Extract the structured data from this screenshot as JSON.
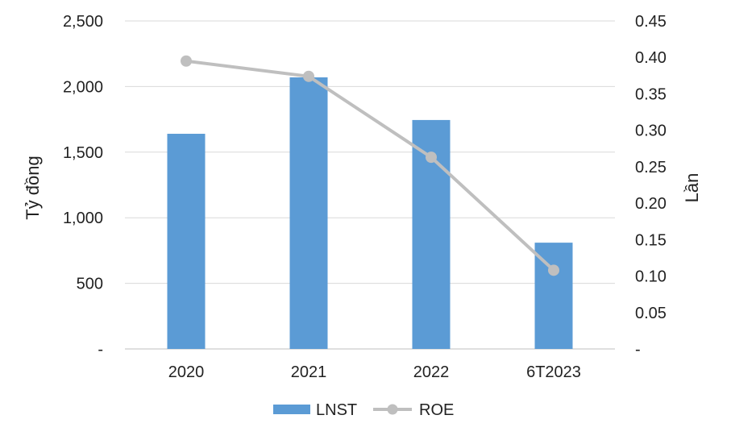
{
  "chart_data": {
    "type": "bar",
    "categories": [
      "2020",
      "2021",
      "2022",
      "6T2023"
    ],
    "series": [
      {
        "name": "LNST",
        "kind": "bar",
        "axis": "left",
        "values": [
          1640,
          2070,
          1745,
          810
        ]
      },
      {
        "name": "ROE",
        "kind": "line",
        "axis": "right",
        "values": [
          0.395,
          0.374,
          0.263,
          0.108
        ]
      }
    ],
    "ylabel": "Tỷ đồng",
    "y2label": "Lần",
    "ylim": [
      0,
      2500
    ],
    "y2lim": [
      0,
      0.45
    ],
    "y_ticks": [
      "-",
      "500",
      "1,000",
      "1,500",
      "2,000",
      "2,500"
    ],
    "y2_ticks": [
      "-",
      "0.05",
      "0.10",
      "0.15",
      "0.20",
      "0.25",
      "0.30",
      "0.35",
      "0.40",
      "0.45"
    ],
    "grid": "horizontal",
    "legend_position": "bottom",
    "colors": {
      "LNST": "#5b9bd5",
      "ROE": "#bfbfbf",
      "grid": "#d9d9d9"
    }
  }
}
